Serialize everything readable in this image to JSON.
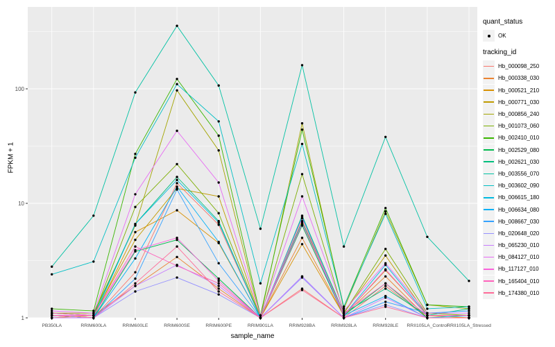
{
  "chart_data": {
    "type": "line",
    "title": "",
    "xlabel": "sample_name",
    "ylabel": "FPKM + 1",
    "y_scale": "log10",
    "y_ticks": [
      1,
      10,
      100
    ],
    "y_minor_ticks": [
      3.162,
      31.623,
      316.23
    ],
    "ylim": [
      0.87,
      460
    ],
    "grid": "on",
    "legend_position": "right",
    "panel_bg": "#EBEBEB",
    "grid_color": "#FFFFFF",
    "axis_text_color": "#4D4D4D",
    "point_color": "#000000",
    "legend_key_bg": "#F2F2F2",
    "x_categories": [
      "PB350LA",
      "RRIM600LA",
      "RRIM600LE",
      "RRIM600SE",
      "RRIM600PE",
      "RRIM901LA",
      "RRIM928BA",
      "RRIM928LA",
      "RRIM928LE",
      "RRII105LA_Control",
      "RRII105LA_Stressed"
    ],
    "legend": {
      "quant_status_title": "quant_status",
      "ok_label": "OK",
      "tracking_title": "tracking_id"
    },
    "series": [
      {
        "name": "Hb_000098_250",
        "color": "#F8766D",
        "values": [
          1.05,
          1.0,
          2.5,
          15.0,
          6.5,
          1.0,
          1.8,
          1.0,
          1.9,
          1.0,
          1.0
        ]
      },
      {
        "name": "Hb_000338_030",
        "color": "#EA8331",
        "values": [
          1.0,
          1.05,
          1.9,
          3.4,
          1.8,
          1.0,
          5.0,
          1.05,
          2.3,
          1.0,
          1.0
        ]
      },
      {
        "name": "Hb_000521_210",
        "color": "#D89000",
        "values": [
          1.0,
          1.0,
          5.6,
          8.7,
          4.5,
          1.0,
          4.4,
          1.05,
          2.6,
          1.05,
          1.0
        ]
      },
      {
        "name": "Hb_000771_030",
        "color": "#C09B00",
        "values": [
          1.1,
          1.05,
          4.8,
          13.5,
          11.5,
          1.0,
          7.0,
          1.1,
          3.5,
          1.05,
          1.05
        ]
      },
      {
        "name": "Hb_000856_240",
        "color": "#A3A500",
        "values": [
          1.1,
          1.1,
          6.4,
          97.0,
          29.0,
          1.0,
          50.0,
          1.2,
          8.5,
          1.3,
          1.2
        ]
      },
      {
        "name": "Hb_001073_060",
        "color": "#7CAE00",
        "values": [
          1.05,
          1.05,
          9.3,
          22.0,
          8.2,
          1.0,
          18.0,
          1.1,
          4.0,
          1.1,
          1.05
        ]
      },
      {
        "name": "Hb_002410_010",
        "color": "#39B600",
        "values": [
          1.2,
          1.15,
          27.0,
          122.0,
          39.0,
          1.05,
          44.0,
          1.25,
          9.1,
          1.3,
          1.25
        ]
      },
      {
        "name": "Hb_002529_080",
        "color": "#00BB4E",
        "values": [
          1.05,
          1.0,
          3.8,
          4.8,
          2.2,
          1.0,
          6.4,
          1.05,
          2.0,
          1.0,
          1.0
        ]
      },
      {
        "name": "Hb_002621_030",
        "color": "#00BF7D",
        "values": [
          1.1,
          1.05,
          6.6,
          17.0,
          7.0,
          1.0,
          7.8,
          1.1,
          1.8,
          1.05,
          1.2
        ]
      },
      {
        "name": "Hb_003556_070",
        "color": "#00C1A3",
        "values": [
          2.8,
          7.8,
          93.0,
          355.0,
          107.0,
          6.0,
          161.0,
          4.2,
          38.0,
          5.1,
          2.1
        ]
      },
      {
        "name": "Hb_003602_090",
        "color": "#00BFC4",
        "values": [
          2.4,
          3.1,
          25.0,
          110.0,
          52.0,
          2.0,
          33.0,
          1.25,
          8.1,
          1.2,
          1.25
        ]
      },
      {
        "name": "Hb_006615_180",
        "color": "#00BAE0",
        "values": [
          1.05,
          1.0,
          6.6,
          16.0,
          6.8,
          1.0,
          7.6,
          1.05,
          2.9,
          1.05,
          1.05
        ]
      },
      {
        "name": "Hb_006634_080",
        "color": "#00B0F6",
        "values": [
          1.05,
          1.0,
          3.3,
          14.0,
          4.6,
          1.0,
          6.8,
          1.05,
          1.55,
          1.0,
          1.05
        ]
      },
      {
        "name": "Hb_008667_030",
        "color": "#35A2FF",
        "values": [
          1.0,
          1.0,
          2.2,
          13.2,
          3.0,
          1.0,
          2.3,
          1.0,
          1.38,
          1.1,
          1.15
        ]
      },
      {
        "name": "Hb_020648_020",
        "color": "#9590FF",
        "values": [
          1.0,
          1.0,
          1.7,
          2.25,
          1.6,
          1.0,
          2.25,
          1.0,
          1.3,
          1.0,
          1.0
        ]
      },
      {
        "name": "Hb_065230_010",
        "color": "#C77CFF",
        "values": [
          1.0,
          1.0,
          1.9,
          2.9,
          1.9,
          1.0,
          2.3,
          1.0,
          1.5,
          1.0,
          1.0
        ]
      },
      {
        "name": "Hb_084127_010",
        "color": "#E76BF3",
        "values": [
          1.15,
          1.1,
          12.0,
          43.0,
          15.2,
          1.05,
          11.5,
          1.15,
          3.0,
          1.1,
          1.1
        ]
      },
      {
        "name": "Hb_117127_010",
        "color": "#FA62DB",
        "values": [
          1.05,
          1.05,
          3.9,
          5.0,
          2.1,
          1.0,
          7.4,
          1.05,
          2.65,
          1.05,
          1.05
        ]
      },
      {
        "name": "Hb_165404_010",
        "color": "#FF62BC",
        "values": [
          1.1,
          1.05,
          4.2,
          2.85,
          2.0,
          1.0,
          6.6,
          1.1,
          2.0,
          1.05,
          1.05
        ]
      },
      {
        "name": "Hb_174380_010",
        "color": "#FF6A98",
        "values": [
          1.05,
          1.0,
          2.0,
          4.2,
          1.7,
          1.0,
          1.75,
          1.0,
          1.25,
          1.0,
          1.0
        ]
      }
    ]
  }
}
